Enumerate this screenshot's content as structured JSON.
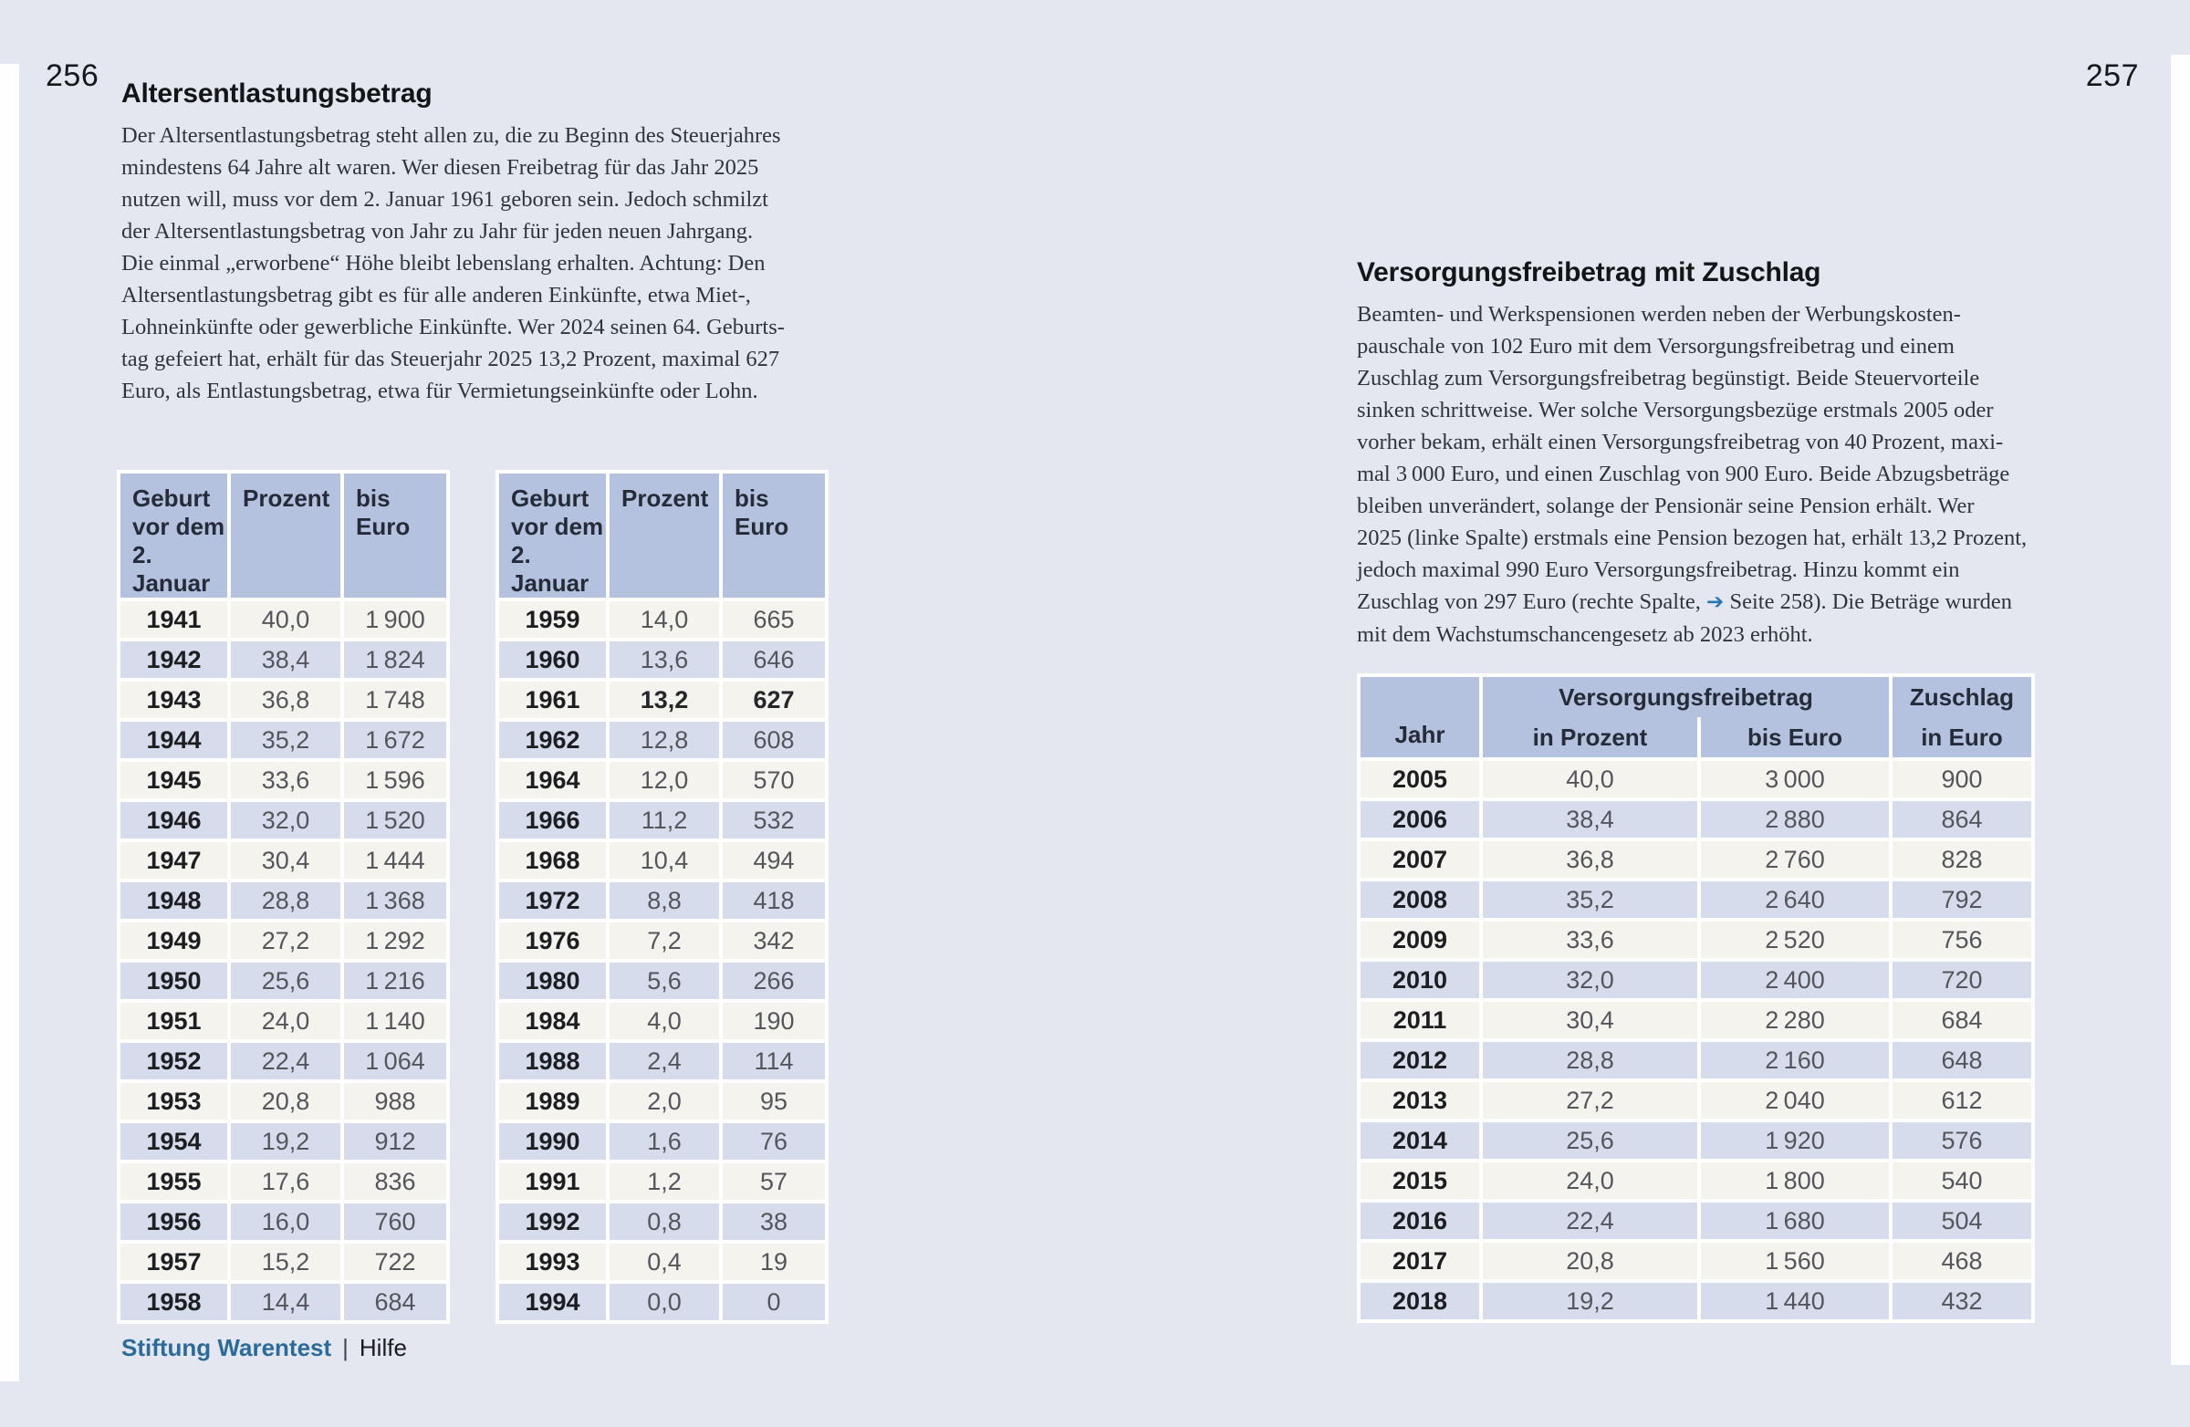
{
  "page": {
    "left_number": "256",
    "right_number": "257"
  },
  "left_article": {
    "title": "Altersentlastungsbetrag",
    "body": "Der Altersentlastungsbetrag steht allen zu, die zu Beginn des Steuerjahres\nmindestens 64 Jahre alt waren. Wer diesen Freibetrag für das Jahr 2025\nnutzen will, muss vor dem 2. Januar 1961 geboren sein. Jedoch schmilzt\nder Altersentlastungsbetrag von Jahr zu Jahr für jeden neuen Jahrgang.\nDie einmal „erworbene“ Höhe bleibt lebenslang erhalten. Achtung: Den\nAltersentlastungsbetrag gibt es für alle anderen Einkünfte, etwa Miet-,\nLohneinkünfte oder gewerbliche Einkünfte. Wer 2024 seinen 64. Geburts-\ntag gefeiert hat, erhält für das Steuerjahr 2025 13,2 Prozent, maximal 627\nEuro, als Entlastungsbetrag, etwa für Vermietungseinkünfte oder Lohn.",
    "table_header": {
      "birth": "Geburt\nvor dem\n2. Januar",
      "percent": "Prozent",
      "euro": "bis Euro"
    },
    "table1_rows": [
      [
        "1941",
        "40,0",
        "1 900"
      ],
      [
        "1942",
        "38,4",
        "1 824"
      ],
      [
        "1943",
        "36,8",
        "1 748"
      ],
      [
        "1944",
        "35,2",
        "1 672"
      ],
      [
        "1945",
        "33,6",
        "1 596"
      ],
      [
        "1946",
        "32,0",
        "1 520"
      ],
      [
        "1947",
        "30,4",
        "1 444"
      ],
      [
        "1948",
        "28,8",
        "1 368"
      ],
      [
        "1949",
        "27,2",
        "1 292"
      ],
      [
        "1950",
        "25,6",
        "1 216"
      ],
      [
        "1951",
        "24,0",
        "1 140"
      ],
      [
        "1952",
        "22,4",
        "1 064"
      ],
      [
        "1953",
        "20,8",
        "988"
      ],
      [
        "1954",
        "19,2",
        "912"
      ],
      [
        "1955",
        "17,6",
        "836"
      ],
      [
        "1956",
        "16,0",
        "760"
      ],
      [
        "1957",
        "15,2",
        "722"
      ],
      [
        "1958",
        "14,4",
        "684"
      ]
    ],
    "table2_rows": [
      [
        "1959",
        "14,0",
        "665"
      ],
      [
        "1960",
        "13,6",
        "646"
      ],
      [
        "1961",
        "13,2",
        "627"
      ],
      [
        "1962",
        "12,8",
        "608"
      ],
      [
        "1964",
        "12,0",
        "570"
      ],
      [
        "1966",
        "11,2",
        "532"
      ],
      [
        "1968",
        "10,4",
        "494"
      ],
      [
        "1972",
        "8,8",
        "418"
      ],
      [
        "1976",
        "7,2",
        "342"
      ],
      [
        "1980",
        "5,6",
        "266"
      ],
      [
        "1984",
        "4,0",
        "190"
      ],
      [
        "1988",
        "2,4",
        "114"
      ],
      [
        "1989",
        "2,0",
        "95"
      ],
      [
        "1990",
        "1,6",
        "76"
      ],
      [
        "1991",
        "1,2",
        "57"
      ],
      [
        "1992",
        "0,8",
        "38"
      ],
      [
        "1993",
        "0,4",
        "19"
      ],
      [
        "1994",
        "0,0",
        "0"
      ]
    ]
  },
  "right_article": {
    "title": "Versorgungsfreibetrag mit Zuschlag",
    "body_before_ref": "Beamten- und Werkspensionen werden neben der Werbungskosten-\npauschale von 102 Euro mit dem Versorgungsfreibetrag und einem\nZuschlag zum Versorgungsfreibetrag begünstigt. Beide Steuervorteile\nsinken schrittweise. Wer solche Versorgungsbezüge erstmals 2005 oder\nvorher bekam, erhält einen Versorgungsfreibetrag von 40 Prozent, maxi-\nmal 3 000 Euro, und einen Zuschlag von 900 Euro. Beide Abzugsbeträge\nbleiben unverändert, solange der Pensionär seine Pension erhält. Wer\n2025 (linke Spalte) erstmals eine Pension bezogen hat, erhält 13,2 Prozent,\njedoch maximal 990 Euro Versorgungsfreibetrag. Hinzu kommt ein\nZuschlag von 297 Euro (rechte Spalte, ",
    "ref_arrow": "➔",
    "body_after_ref": " Seite 258). Die Beträge wurden\nmit dem Wachstumschancengesetz ab 2023 erhöht.",
    "table": {
      "header": {
        "year": "Jahr",
        "group": "Versorgungsfreibetrag",
        "sub_percent": "in Prozent",
        "sub_euro": "bis Euro",
        "surcharge": "Zuschlag\nin Euro"
      },
      "rows": [
        [
          "2005",
          "40,0",
          "3 000",
          "900"
        ],
        [
          "2006",
          "38,4",
          "2 880",
          "864"
        ],
        [
          "2007",
          "36,8",
          "2 760",
          "828"
        ],
        [
          "2008",
          "35,2",
          "2 640",
          "792"
        ],
        [
          "2009",
          "33,6",
          "2 520",
          "756"
        ],
        [
          "2010",
          "32,0",
          "2 400",
          "720"
        ],
        [
          "2011",
          "30,4",
          "2 280",
          "684"
        ],
        [
          "2012",
          "28,8",
          "2 160",
          "648"
        ],
        [
          "2013",
          "27,2",
          "2 040",
          "612"
        ],
        [
          "2014",
          "25,6",
          "1 920",
          "576"
        ],
        [
          "2015",
          "24,0",
          "1 800",
          "540"
        ],
        [
          "2016",
          "22,4",
          "1 680",
          "504"
        ],
        [
          "2017",
          "20,8",
          "1 560",
          "468"
        ],
        [
          "2018",
          "19,2",
          "1 440",
          "432"
        ]
      ]
    }
  },
  "footer": {
    "brand": "Stiftung Warentest",
    "divider": "|",
    "label": "Hilfe"
  },
  "colors": {
    "page_background": "#e4e7f0",
    "table_header_blue": "#b4c2e0",
    "row_light": "#f4f3ee",
    "row_blue": "#d6dcec",
    "footer_brand_blue": "#2a6b9c",
    "arrow_blue": "#2878b0"
  }
}
